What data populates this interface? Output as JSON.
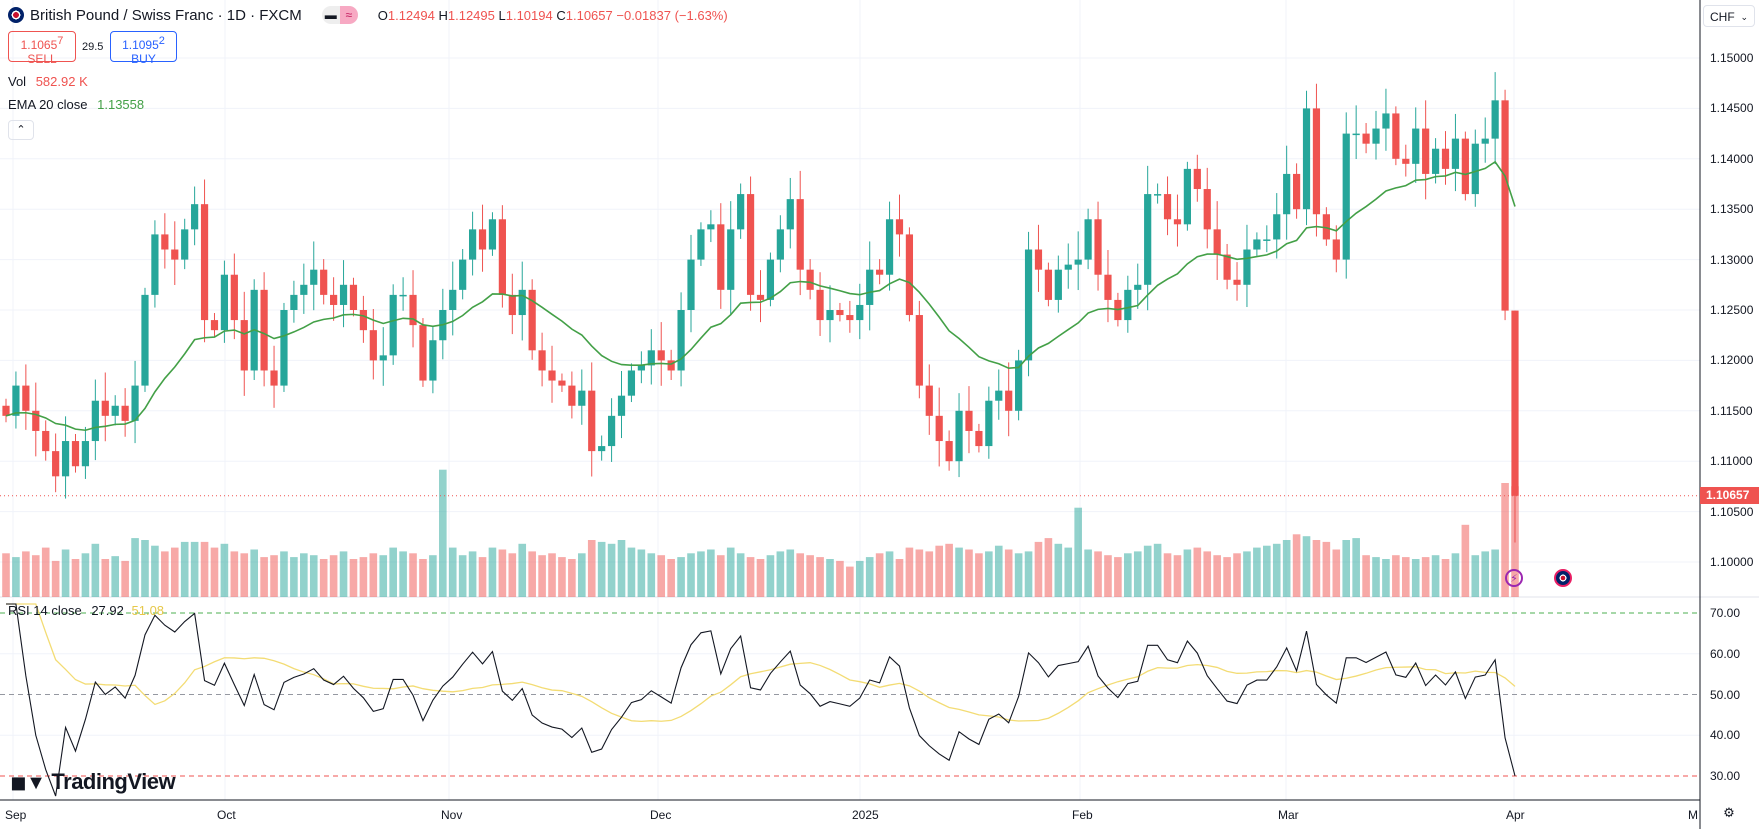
{
  "header": {
    "symbol_title": "British Pound / Swiss Franc · 1D · FXCM",
    "pill_icons": [
      "minus-icon",
      "approx-icon"
    ],
    "pill_minus": "▬",
    "pill_approx": "≈",
    "o_label": "O",
    "o": "1.12494",
    "h_label": "H",
    "h": "1.12495",
    "l_label": "L",
    "l": "1.10194",
    "c_label": "C",
    "c": "1.10657",
    "change": "−0.01837 (−1.63%)"
  },
  "trade": {
    "sell_price": "1.1065",
    "sell_sup": "7",
    "sell_label": "SELL",
    "spread": "29.5",
    "buy_price": "1.1095",
    "buy_sup": "2",
    "buy_label": "BUY"
  },
  "indicators": {
    "vol_label": "Vol",
    "vol_value": "582.92 K",
    "ema_label": "EMA 20 close",
    "ema_value": "1.13558",
    "rsi_label": "RSI 14 close",
    "rsi_value": "27.92",
    "rsi_ma_value": "51.08",
    "collapse": "⌃"
  },
  "axis": {
    "currency": "CHF",
    "currency_caret": "⌄",
    "current_price": "1.10657",
    "price_ticks": [
      "1.15000",
      "1.14500",
      "1.14000",
      "1.13500",
      "1.13000",
      "1.12500",
      "1.12000",
      "1.11500",
      "1.11000",
      "1.10500",
      "1.10000"
    ],
    "rsi_ticks": [
      "70.00",
      "60.00",
      "50.00",
      "40.00",
      "30.00"
    ],
    "time_ticks": [
      "Sep",
      "Oct",
      "Nov",
      "Dec",
      "2025",
      "Feb",
      "Mar",
      "Apr",
      "M"
    ],
    "settings_icon": "⚙"
  },
  "logo": {
    "mark": "𝟭𝟳",
    "text": "TradingView"
  },
  "markers": {
    "bolt": "⚡"
  },
  "colors": {
    "up": "#26a69a",
    "down": "#ef5350",
    "ema": "#43a047",
    "rsi": "#131722",
    "rsi_ma": "#f3dc74"
  },
  "chart_data": {
    "type": "candlestick",
    "title": "British Pound / Swiss Franc · 1D · FXCM",
    "ylim": [
      1.098,
      1.152
    ],
    "rsi_levels": [
      70,
      50,
      30
    ],
    "last_bar": {
      "open": 1.12494,
      "high": 1.12495,
      "low": 1.10194,
      "close": 1.10657
    },
    "close": [
      1.1145,
      1.1175,
      1.115,
      1.113,
      1.111,
      1.1085,
      1.112,
      1.1095,
      1.112,
      1.116,
      1.1145,
      1.1155,
      1.114,
      1.1175,
      1.1265,
      1.1325,
      1.131,
      1.13,
      1.133,
      1.1355,
      1.124,
      1.123,
      1.1285,
      1.124,
      1.119,
      1.127,
      1.119,
      1.1175,
      1.125,
      1.1265,
      1.1275,
      1.129,
      1.1265,
      1.1255,
      1.1275,
      1.125,
      1.123,
      1.12,
      1.1205,
      1.1265,
      1.1265,
      1.1235,
      1.118,
      1.122,
      1.125,
      1.127,
      1.13,
      1.133,
      1.131,
      1.134,
      1.1265,
      1.1245,
      1.127,
      1.121,
      1.119,
      1.118,
      1.1175,
      1.1155,
      1.117,
      1.111,
      1.1115,
      1.1145,
      1.1165,
      1.119,
      1.1195,
      1.121,
      1.12,
      1.119,
      1.125,
      1.13,
      1.133,
      1.1335,
      1.127,
      1.133,
      1.1365,
      1.1265,
      1.126,
      1.13,
      1.133,
      1.136,
      1.129,
      1.127,
      1.124,
      1.125,
      1.1245,
      1.124,
      1.1255,
      1.129,
      1.1285,
      1.134,
      1.1325,
      1.1245,
      1.1175,
      1.1145,
      1.112,
      1.11,
      1.115,
      1.113,
      1.1115,
      1.116,
      1.117,
      1.115,
      1.12,
      1.131,
      1.129,
      1.126,
      1.129,
      1.1295,
      1.13,
      1.134,
      1.1285,
      1.126,
      1.124,
      1.127,
      1.1275,
      1.1365,
      1.1365,
      1.134,
      1.1335,
      1.139,
      1.137,
      1.133,
      1.1305,
      1.128,
      1.1275,
      1.131,
      1.132,
      1.132,
      1.1345,
      1.1385,
      1.135,
      1.145,
      1.1345,
      1.132,
      1.13,
      1.1425,
      1.1425,
      1.1415,
      1.143,
      1.1445,
      1.14,
      1.1395,
      1.143,
      1.1385,
      1.141,
      1.139,
      1.142,
      1.1365,
      1.1415,
      1.142,
      1.1458,
      1.12494,
      1.10657
    ],
    "volume_k": [
      230,
      210,
      240,
      220,
      260,
      190,
      250,
      200,
      230,
      280,
      200,
      215,
      190,
      310,
      300,
      270,
      240,
      260,
      290,
      290,
      290,
      260,
      280,
      240,
      230,
      250,
      210,
      220,
      240,
      210,
      230,
      220,
      200,
      220,
      240,
      200,
      210,
      230,
      220,
      260,
      240,
      230,
      200,
      220,
      670,
      260,
      220,
      240,
      210,
      260,
      250,
      230,
      280,
      240,
      220,
      230,
      210,
      200,
      230,
      300,
      290,
      280,
      300,
      260,
      250,
      230,
      220,
      200,
      210,
      230,
      240,
      250,
      220,
      260,
      230,
      210,
      200,
      220,
      240,
      250,
      230,
      220,
      210,
      200,
      190,
      160,
      190,
      210,
      230,
      240,
      200,
      260,
      250,
      240,
      270,
      280,
      260,
      250,
      230,
      240,
      270,
      250,
      230,
      240,
      290,
      310,
      280,
      260,
      470,
      250,
      240,
      220,
      210,
      230,
      240,
      270,
      280,
      230,
      220,
      250,
      260,
      240,
      220,
      210,
      230,
      240,
      260,
      270,
      280,
      300,
      330,
      320,
      300,
      290,
      250,
      300,
      310,
      220,
      210,
      200,
      220,
      210,
      200,
      210,
      220,
      200,
      230,
      380,
      220,
      240,
      250,
      600,
      582.92
    ],
    "ema_period": 20,
    "rsi_period": 14,
    "rsi_ma_period": 14
  }
}
